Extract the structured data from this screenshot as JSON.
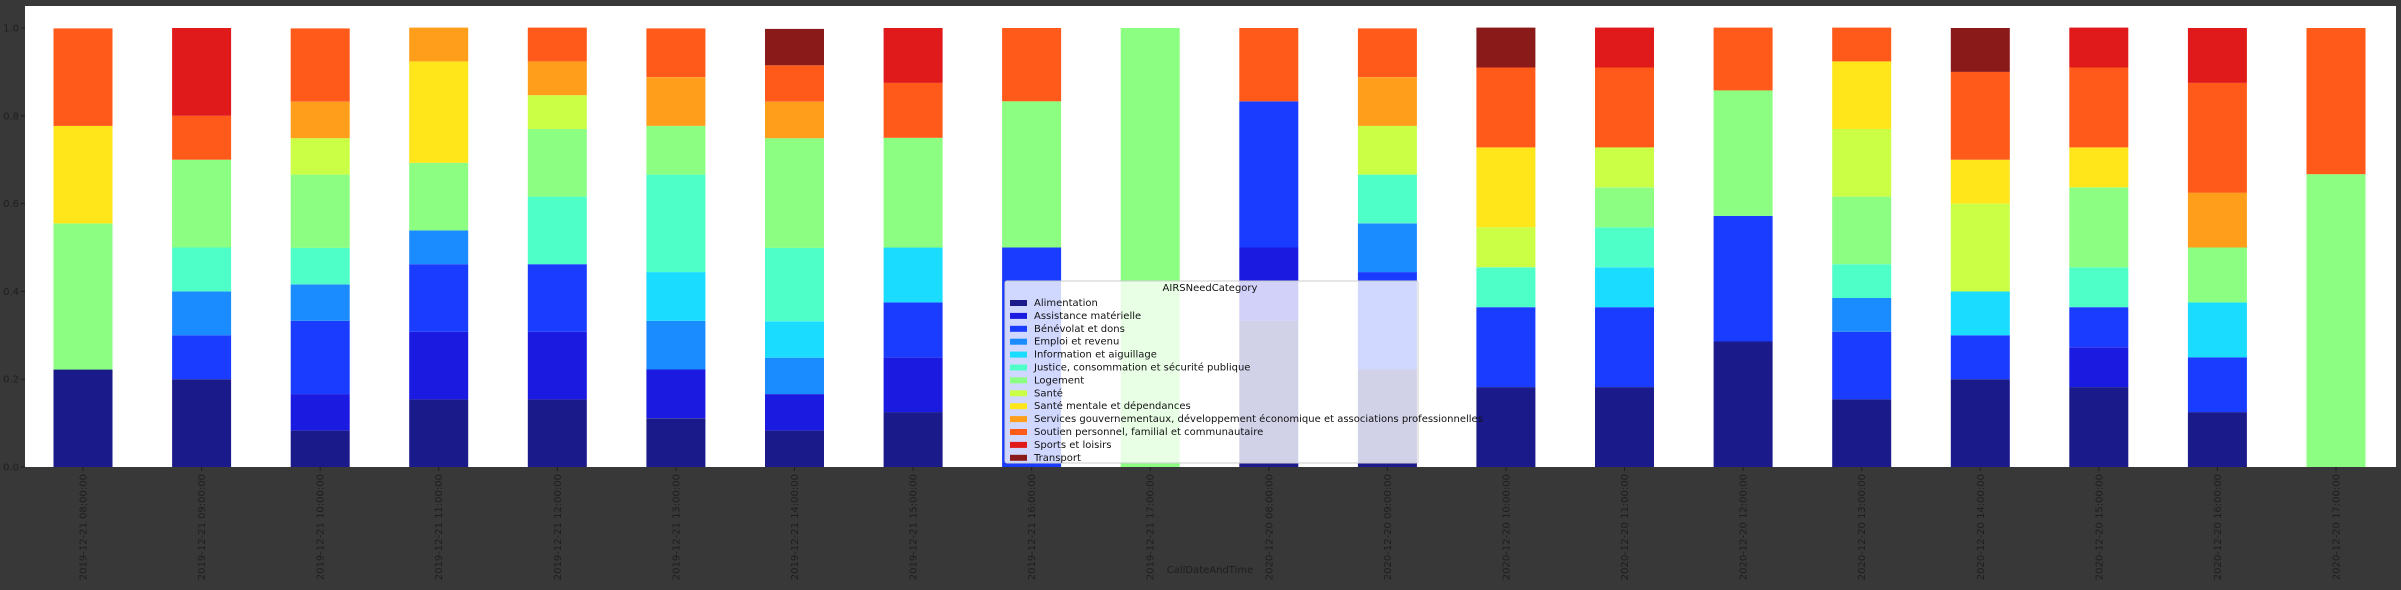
{
  "chart_data": {
    "type": "bar",
    "stacked": true,
    "normalized": true,
    "title": "",
    "xlabel": "CallDateAndTime",
    "ylabel": "",
    "ylim": [
      0,
      1.0
    ],
    "yticks": [
      "0.0",
      "0.2",
      "0.4",
      "0.6",
      "0.8",
      "1.0"
    ],
    "ytick_values": [
      0,
      0.2,
      0.4,
      0.6,
      0.8,
      1.0
    ],
    "grid": false,
    "legend_title": "AIRSNeedCategory",
    "legend_position": "lower-center",
    "categories": [
      "2019-12-21 08:00:00",
      "2019-12-21 09:00:00",
      "2019-12-21 10:00:00",
      "2019-12-21 11:00:00",
      "2019-12-21 12:00:00",
      "2019-12-21 13:00:00",
      "2019-12-21 14:00:00",
      "2019-12-21 15:00:00",
      "2019-12-21 16:00:00",
      "2019-12-21 17:00:00",
      "2020-12-20 08:00:00",
      "2020-12-20 09:00:00",
      "2020-12-20 10:00:00",
      "2020-12-20 11:00:00",
      "2020-12-20 12:00:00",
      "2020-12-20 13:00:00",
      "2020-12-20 14:00:00",
      "2020-12-20 15:00:00",
      "2020-12-20 16:00:00",
      "2020-12-20 17:00:00"
    ],
    "series": [
      {
        "name": "Alimentation",
        "color": "#1a1a8a",
        "values": [
          0.222,
          0.2,
          0.083,
          0.154,
          0.154,
          0.111,
          0.083,
          0.125,
          0,
          0,
          0.333,
          0.222,
          0.182,
          0.182,
          0.286,
          0.154,
          0.2,
          0.182,
          0.125,
          0
        ]
      },
      {
        "name": "Assistance matérielle",
        "color": "#1a1ae0",
        "values": [
          0,
          0,
          0.083,
          0.154,
          0.154,
          0.111,
          0.083,
          0.125,
          0,
          0,
          0.167,
          0,
          0,
          0,
          0,
          0,
          0,
          0.091,
          0,
          0
        ]
      },
      {
        "name": "Bénévolat et dons",
        "color": "#1a3cff",
        "values": [
          0,
          0.1,
          0.167,
          0.154,
          0.154,
          0,
          0,
          0.125,
          0.5,
          0,
          0.333,
          0.222,
          0.182,
          0.182,
          0.286,
          0.154,
          0.1,
          0.091,
          0.125,
          0
        ]
      },
      {
        "name": "Emploi et revenu",
        "color": "#1a8cff",
        "values": [
          0,
          0.1,
          0.083,
          0.077,
          0,
          0.111,
          0.083,
          0,
          0,
          0,
          0,
          0.111,
          0,
          0,
          0,
          0.077,
          0,
          0,
          0,
          0
        ]
      },
      {
        "name": "Information et aiguillage",
        "color": "#1adcff",
        "values": [
          0,
          0,
          0,
          0,
          0,
          0.111,
          0.083,
          0.125,
          0,
          0,
          0,
          0,
          0,
          0.091,
          0,
          0,
          0.1,
          0,
          0.125,
          0
        ]
      },
      {
        "name": "Justice, consommation et sécurité publique",
        "color": "#4effc8",
        "values": [
          0,
          0.1,
          0.083,
          0,
          0.154,
          0.222,
          0.167,
          0,
          0,
          0,
          0,
          0.111,
          0.091,
          0.091,
          0,
          0.077,
          0,
          0.091,
          0,
          0
        ]
      },
      {
        "name": "Logement",
        "color": "#8cff82",
        "values": [
          0.333,
          0.2,
          0.167,
          0.154,
          0.154,
          0.111,
          0.25,
          0.25,
          0.333,
          1.0,
          0,
          0,
          0,
          0.091,
          0.286,
          0.154,
          0,
          0.182,
          0.125,
          0.667
        ]
      },
      {
        "name": "Santé",
        "color": "#caff46",
        "values": [
          0,
          0,
          0.083,
          0,
          0.077,
          0,
          0,
          0,
          0,
          0,
          0,
          0.111,
          0.091,
          0.091,
          0,
          0.154,
          0.2,
          0,
          0,
          0
        ]
      },
      {
        "name": "Santé mentale et dépendances",
        "color": "#ffe61a",
        "values": [
          0.222,
          0,
          0,
          0.231,
          0,
          0,
          0,
          0,
          0,
          0,
          0,
          0,
          0.182,
          0,
          0,
          0.154,
          0.1,
          0.091,
          0,
          0
        ]
      },
      {
        "name": "Services gouvernementaux, développement économique et associations professionnelles",
        "color": "#ff9e1a",
        "values": [
          0,
          0,
          0.083,
          0.077,
          0.077,
          0.111,
          0.083,
          0,
          0,
          0,
          0,
          0.111,
          0,
          0,
          0,
          0,
          0,
          0,
          0.125,
          0
        ]
      },
      {
        "name": "Soutien personnel, familial et communautaire",
        "color": "#ff5a1a",
        "values": [
          0.222,
          0.1,
          0.167,
          0,
          0.077,
          0.111,
          0.083,
          0.125,
          0.167,
          0,
          0.167,
          0.111,
          0.182,
          0.182,
          0.143,
          0.077,
          0.2,
          0.182,
          0.25,
          0.333
        ]
      },
      {
        "name": "Sports et loisirs",
        "color": "#e01a1a",
        "values": [
          0,
          0.2,
          0,
          0,
          0,
          0,
          0,
          0.125,
          0,
          0,
          0,
          0,
          0,
          0.091,
          0,
          0,
          0,
          0.091,
          0.125,
          0
        ]
      },
      {
        "name": "Transport",
        "color": "#8a1a1a",
        "values": [
          0,
          0,
          0,
          0,
          0,
          0,
          0.083,
          0,
          0,
          0,
          0,
          0,
          0.091,
          0,
          0,
          0,
          0.1,
          0,
          0,
          0
        ]
      }
    ]
  }
}
